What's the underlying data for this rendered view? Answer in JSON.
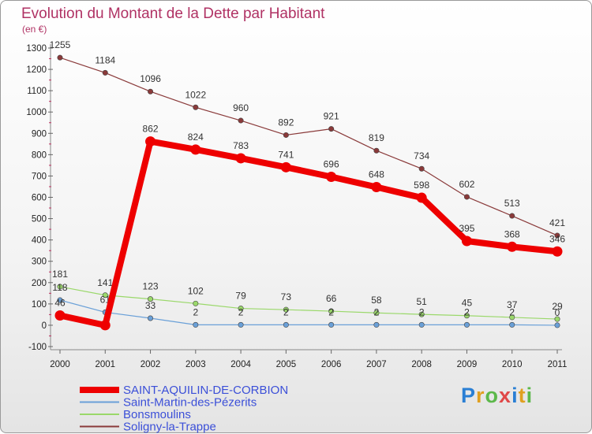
{
  "chart_data": {
    "type": "line",
    "title": "Evolution du Montant de la Dette par Habitant",
    "subtitle": "(en €)",
    "categories": [
      "2000",
      "2001",
      "2002",
      "2003",
      "2004",
      "2005",
      "2006",
      "2007",
      "2008",
      "2009",
      "2010",
      "2011"
    ],
    "ylim": [
      -100,
      1300
    ],
    "yticks": [
      -100,
      0,
      100,
      200,
      300,
      400,
      500,
      600,
      700,
      800,
      900,
      1000,
      1100,
      1200,
      1300
    ],
    "grid": false,
    "legend_position": "bottom-left",
    "series": [
      {
        "name": "SAINT-AQUILIN-DE-CORBION",
        "color": "#ee0000",
        "emphasis": true,
        "values": [
          46,
          0,
          862,
          824,
          783,
          741,
          696,
          648,
          598,
          395,
          368,
          346
        ],
        "labels": [
          "46",
          "",
          "862",
          "824",
          "783",
          "741",
          "696",
          "648",
          "598",
          "395",
          "368",
          "346"
        ]
      },
      {
        "name": "Saint-Martin-des-Pézerits",
        "color": "#6aa0d8",
        "emphasis": false,
        "values": [
          118,
          61,
          33,
          2,
          2,
          2,
          2,
          2,
          2,
          2,
          2,
          0
        ],
        "labels": [
          "118",
          "61",
          "33",
          "2",
          "2",
          "2",
          "2",
          "2",
          "2",
          "2",
          "2",
          "0"
        ]
      },
      {
        "name": "Bonsmoulins",
        "color": "#9ad86a",
        "emphasis": false,
        "values": [
          181,
          141,
          123,
          102,
          79,
          73,
          66,
          58,
          51,
          45,
          37,
          29
        ],
        "labels": [
          "181",
          "141",
          "123",
          "102",
          "79",
          "73",
          "66",
          "58",
          "51",
          "45",
          "37",
          "29"
        ]
      },
      {
        "name": "Soligny-la-Trappe",
        "color": "#8a3a3a",
        "emphasis": false,
        "values": [
          1255,
          1184,
          1096,
          1022,
          960,
          892,
          921,
          819,
          734,
          602,
          513,
          421
        ],
        "labels": [
          "1255",
          "1184",
          "1096",
          "1022",
          "960",
          "892",
          "921",
          "819",
          "734",
          "602",
          "513",
          "421"
        ]
      }
    ]
  },
  "logo": {
    "letters": [
      "P",
      "r",
      "o",
      "x",
      "i",
      "t",
      "i"
    ]
  }
}
